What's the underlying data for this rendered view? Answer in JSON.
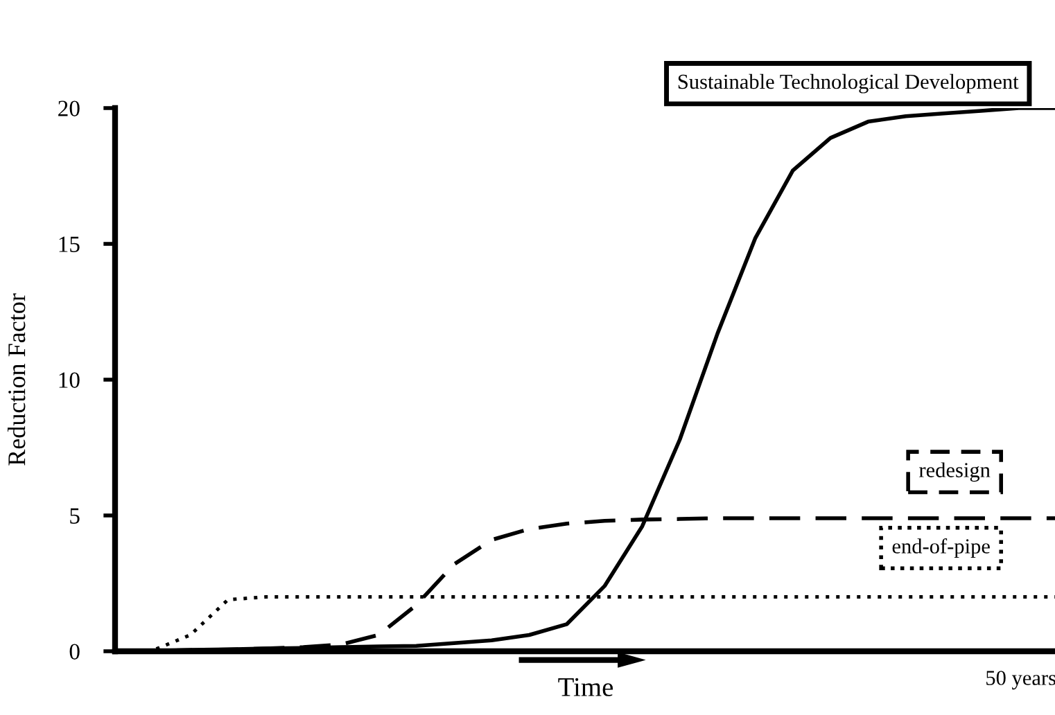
{
  "chart_data": {
    "type": "line",
    "xlabel": "Time",
    "ylabel": "Reduction Factor",
    "categories": [
      null,
      null,
      null,
      null,
      null,
      null,
      null,
      null,
      null,
      null,
      null,
      null,
      null,
      null,
      null,
      null,
      null,
      null,
      null,
      null,
      null,
      null,
      null,
      null,
      null,
      null
    ],
    "ylim": [
      0,
      20
    ],
    "yticks": [
      0,
      5,
      10,
      15,
      20
    ],
    "grid": false,
    "legend": false,
    "marker": "none",
    "annotations": [
      "50 years"
    ],
    "series": [
      {
        "name": "Sustainable Technological Development",
        "color": "#000000",
        "line_style": "solid",
        "values": [
          0,
          0.02,
          0.05,
          0.07,
          0.1,
          0.12,
          0.15,
          0.18,
          0.2,
          0.3,
          0.4,
          0.6,
          1.0,
          2.4,
          4.6,
          7.8,
          11.7,
          15.2,
          17.7,
          18.9,
          19.5,
          19.7,
          19.8,
          19.9,
          20,
          20
        ]
      },
      {
        "name": "redesign",
        "color": "#000000",
        "line_style": "dashed",
        "values": [
          0,
          0.02,
          0.04,
          0.06,
          0.1,
          0.15,
          0.25,
          0.6,
          1.7,
          3.2,
          4.1,
          4.5,
          4.7,
          4.8,
          4.85,
          4.87,
          4.9,
          4.9,
          4.9,
          4.9,
          4.9,
          4.9,
          4.9,
          4.9,
          4.9,
          4.9
        ]
      },
      {
        "name": "end-of-pipe",
        "color": "#000000",
        "line_style": "dotted",
        "values": [
          0,
          0.03,
          0.6,
          1.9,
          2,
          2,
          2,
          2,
          2,
          2,
          2,
          2,
          2,
          2,
          2,
          2,
          2,
          2,
          2,
          2,
          2,
          2,
          2,
          2,
          2,
          2
        ]
      }
    ]
  }
}
